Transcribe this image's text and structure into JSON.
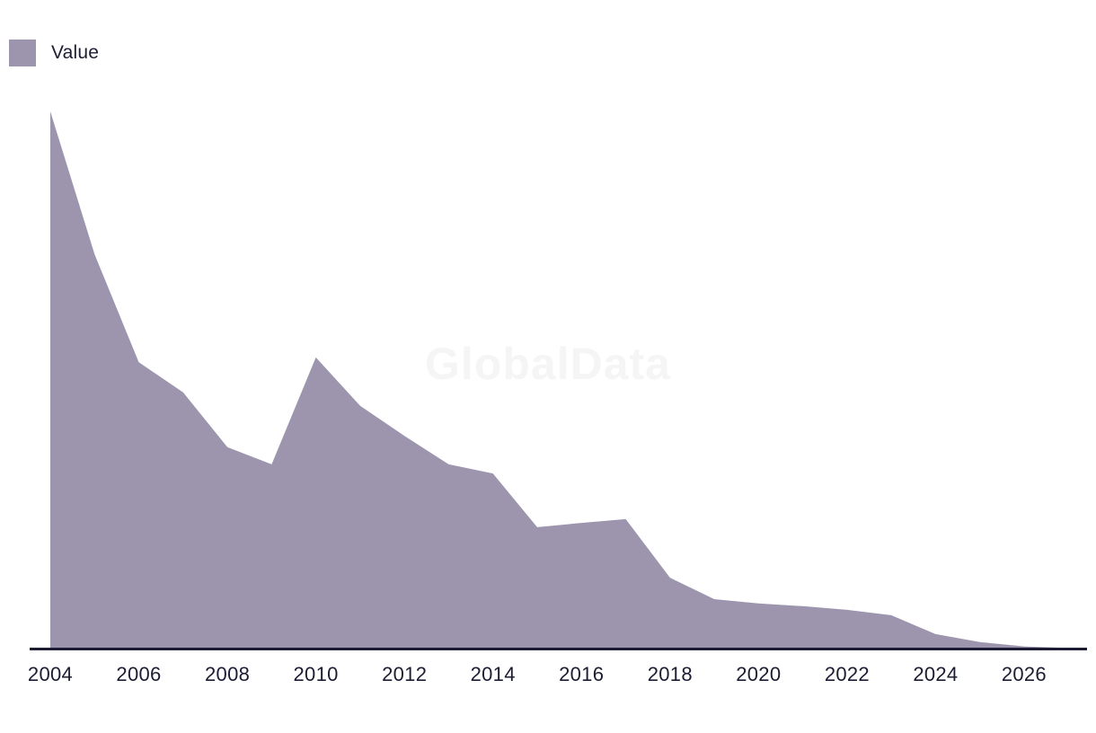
{
  "legend": {
    "label": "Value",
    "swatch_color": "#9c95ad"
  },
  "watermark": "GlobalData",
  "colors": {
    "area_fill": "#9c95ad",
    "axis_line": "#1b1b33",
    "label_text": "#1c1c33",
    "watermark_text": "#f5f5f6",
    "background": "#ffffff"
  },
  "chart_data": {
    "type": "area",
    "title": "",
    "xlabel": "",
    "ylabel": "",
    "x": [
      2004,
      2005,
      2006,
      2007,
      2008,
      2009,
      2010,
      2011,
      2012,
      2013,
      2014,
      2015,
      2016,
      2017,
      2018,
      2019,
      2020,
      2021,
      2022,
      2023,
      2024,
      2025,
      2026,
      2027
    ],
    "series": [
      {
        "name": "Value",
        "color": "#9c95ad",
        "values": [
          100,
          73.4,
          53.3,
          47.7,
          37.5,
          34.3,
          54.2,
          45.2,
          39.6,
          34.3,
          32.6,
          22.6,
          23.4,
          24.1,
          13.2,
          9.2,
          8.4,
          7.9,
          7.2,
          6.2,
          2.7,
          1.2,
          0.4,
          0.1
        ]
      }
    ],
    "value_note": "no y-axis shown; values normalized so 2004 peak = 100",
    "xlim": [
      2004,
      2027
    ],
    "ylim": [
      0,
      100
    ],
    "x_tick_labels": [
      "2004",
      "2006",
      "2008",
      "2010",
      "2012",
      "2014",
      "2016",
      "2018",
      "2020",
      "2022",
      "2024",
      "2026"
    ],
    "grid": false,
    "y_axis_visible": false,
    "legend_position": "top-left"
  }
}
